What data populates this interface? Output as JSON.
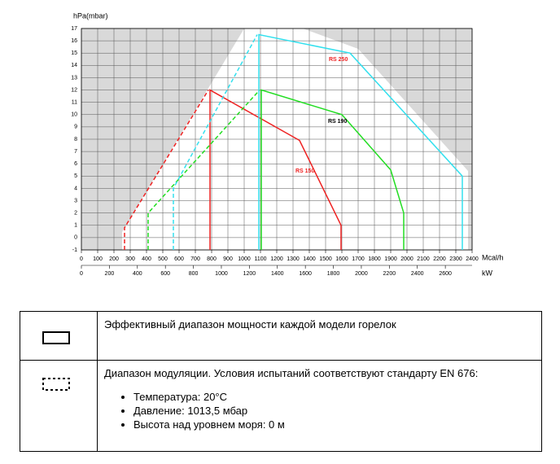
{
  "chart_data": {
    "type": "line",
    "y_label": "hPa(mbar)",
    "x_label": "Mcal/h",
    "x2_label": "kW",
    "xlim": [
      0,
      2400
    ],
    "xticks": [
      0,
      100,
      200,
      300,
      400,
      500,
      600,
      700,
      800,
      900,
      1000,
      1100,
      1200,
      1300,
      1400,
      1500,
      1600,
      1700,
      1800,
      1900,
      2000,
      2100,
      2200,
      2300,
      2400
    ],
    "x2lim": [
      0,
      2791.2
    ],
    "x2ticks": [
      0,
      200,
      400,
      600,
      800,
      1000,
      1200,
      1400,
      1600,
      1800,
      2000,
      2200,
      2400,
      2600
    ],
    "ylim": [
      -1,
      17
    ],
    "yticks": [
      -1,
      0,
      1,
      2,
      3,
      4,
      5,
      6,
      7,
      8,
      9,
      10,
      11,
      12,
      13,
      14,
      15,
      16,
      17
    ],
    "grid": true,
    "series": [
      {
        "name": "RS 150",
        "color": "#ee2222",
        "label_color": "#ee2222",
        "x": [
          790,
          790,
          1340,
          1595,
          1595
        ],
        "values": [
          -1,
          12,
          7.9,
          1,
          -1
        ],
        "modulation": {
          "x": [
            265,
            265,
            780
          ],
          "values": [
            -1,
            0.8,
            12
          ]
        }
      },
      {
        "name": "RS 190",
        "color": "#22dd22",
        "label_color": "#000000",
        "x": [
          1105,
          1105,
          1600,
          1900,
          1980,
          1980
        ],
        "values": [
          -1,
          12,
          10,
          5.5,
          2,
          -1
        ],
        "modulation": {
          "x": [
            410,
            410,
            1095
          ],
          "values": [
            -1,
            2,
            12
          ]
        }
      },
      {
        "name": "RS 250",
        "color": "#33e0ee",
        "label_color": "#ee2222",
        "x": [
          1090,
          1090,
          1650,
          2340,
          2340
        ],
        "values": [
          -1,
          16.5,
          15,
          5,
          -1
        ],
        "modulation": {
          "x": [
            565,
            565,
            1080
          ],
          "values": [
            -1,
            4,
            16.5
          ]
        }
      }
    ]
  },
  "table": {
    "rows": [
      {
        "text": "Эффективный диапазон мощности каждой модели горелок"
      },
      {
        "text": "Диапазон модуляции.  Условия испытаний соответствуют стандарту EN 676:",
        "items": [
          "Температура: 20°C",
          "Давление: 1013,5 мбар",
          "Высота над уровнем моря: 0 м"
        ]
      }
    ]
  }
}
